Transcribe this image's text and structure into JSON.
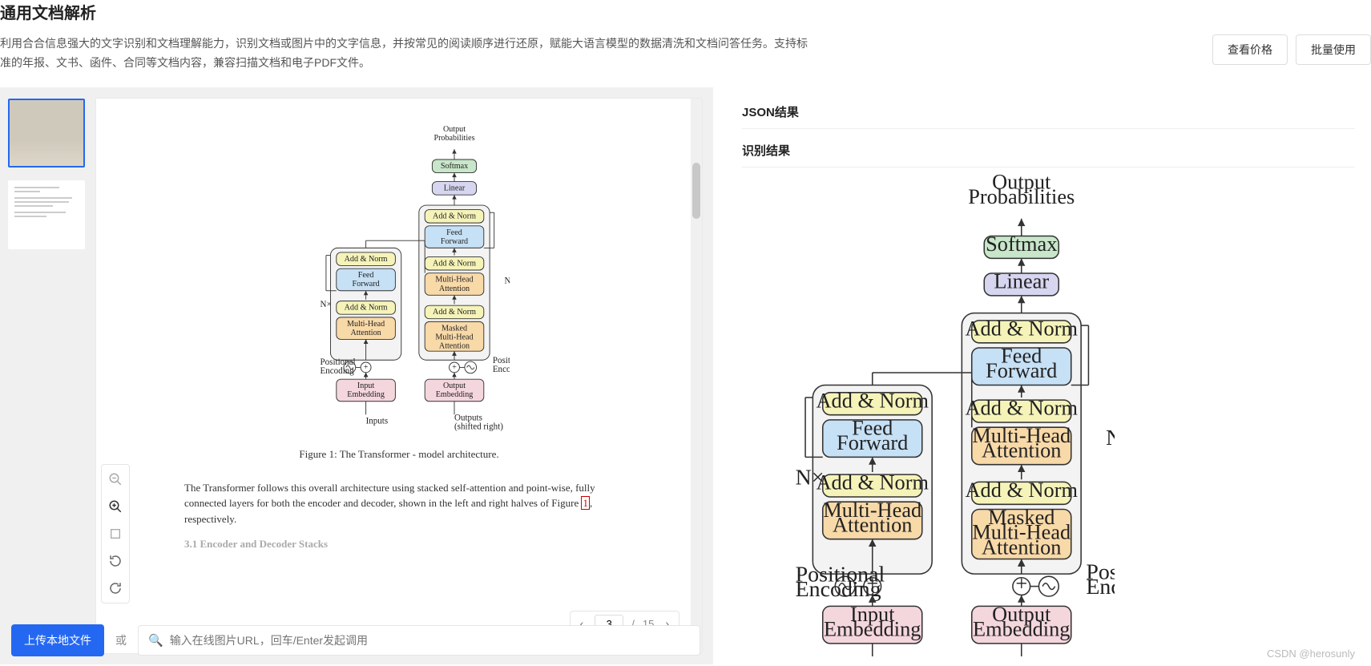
{
  "header": {
    "title": "通用文档解析",
    "description": "利用合合信息强大的文字识别和文档理解能力，识别文档或图片中的文字信息，并按常见的阅读顺序进行还原，赋能大语言模型的数据清洗和文档问答任务。支持标准的年报、文书、函件、合同等文档内容，兼容扫描文档和电子PDF文件。",
    "pricing_button": "查看价格",
    "batch_button": "批量使用"
  },
  "upload": {
    "button": "上传本地文件",
    "or": "或",
    "placeholder": "输入在线图片URL，回车/Enter发起调用"
  },
  "pager": {
    "current": "3",
    "sep": "/",
    "total": "15"
  },
  "tabs": {
    "json": "JSON结果",
    "recog": "识别结果"
  },
  "watermark": "CSDN @herosunly",
  "figure": {
    "caption": "Figure 1: The Transformer - model architecture.",
    "body1": "The Transformer follows this overall architecture using stacked self-attention and point-wise, fully connected layers for both the encoder and decoder, shown in the left and right halves of Figure ",
    "body_link": "1",
    "body2": ", respectively.",
    "sec": "3.1   Encoder and Decoder Stacks"
  },
  "arch": {
    "output_prob": "Output\nProbabilities",
    "softmax": "Softmax",
    "linear": "Linear",
    "add_norm": "Add & Norm",
    "feed_forward": "Feed\nForward",
    "multi_head": "Multi-Head\nAttention",
    "masked_multi_head": "Masked\nMulti-Head\nAttention",
    "input_embed": "Input\nEmbedding",
    "output_embed": "Output\nEmbedding",
    "inputs": "Inputs",
    "outputs": "Outputs",
    "shifted": "(shifted right)",
    "positional": "Positional\nEncoding",
    "nx": "N×",
    "colors": {
      "yellow": "#f5f3b8",
      "blue": "#c6e0f5",
      "orange": "#f8d9a8",
      "green": "#c8e6c9",
      "purple": "#d6d6f0",
      "pink": "#f4d6dd",
      "container": "#f3f3f3",
      "stroke": "#333333"
    },
    "dimensions": {
      "small_w": 280,
      "small_h": 420,
      "large_scale": 1.55
    }
  }
}
